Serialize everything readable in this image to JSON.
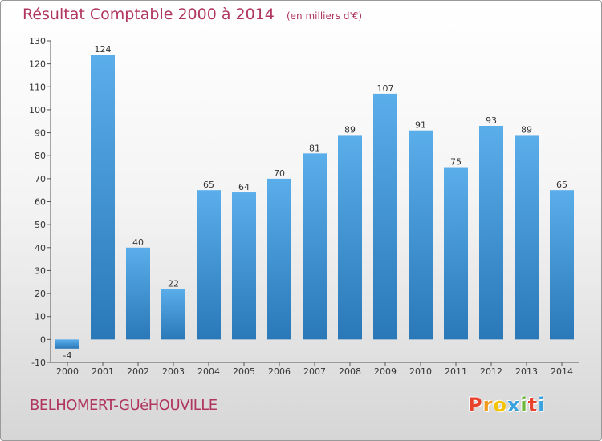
{
  "header": {
    "title": "Résultat Comptable 2000 à 2014",
    "subtitle": "(en milliers d'€)"
  },
  "footer": {
    "commune": "BELHOMERT-GUéHOUVILLE",
    "logo_text": "Proxiti"
  },
  "colors": {
    "title": "#b0365e",
    "bar_top": "#5aaeea",
    "bar_bottom": "#2a78b8",
    "logo": [
      "#e8412c",
      "#f29a1d",
      "#f5c400",
      "#3aa3df",
      "#6bb83a",
      "#e8412c",
      "#3aa3df"
    ]
  },
  "chart_data": {
    "type": "bar",
    "title": "Résultat Comptable 2000 à 2014",
    "subtitle": "(en milliers d'€)",
    "categories": [
      "2000",
      "2001",
      "2002",
      "2003",
      "2004",
      "2005",
      "2006",
      "2007",
      "2008",
      "2009",
      "2010",
      "2011",
      "2012",
      "2013",
      "2014"
    ],
    "values": [
      -4,
      124,
      40,
      22,
      65,
      64,
      70,
      81,
      89,
      107,
      91,
      75,
      93,
      89,
      65
    ],
    "ylim": [
      -10,
      130
    ],
    "yticks": [
      -10,
      0,
      10,
      20,
      30,
      40,
      50,
      60,
      70,
      80,
      90,
      100,
      110,
      120,
      130
    ],
    "grid": false,
    "data_labels": true
  }
}
